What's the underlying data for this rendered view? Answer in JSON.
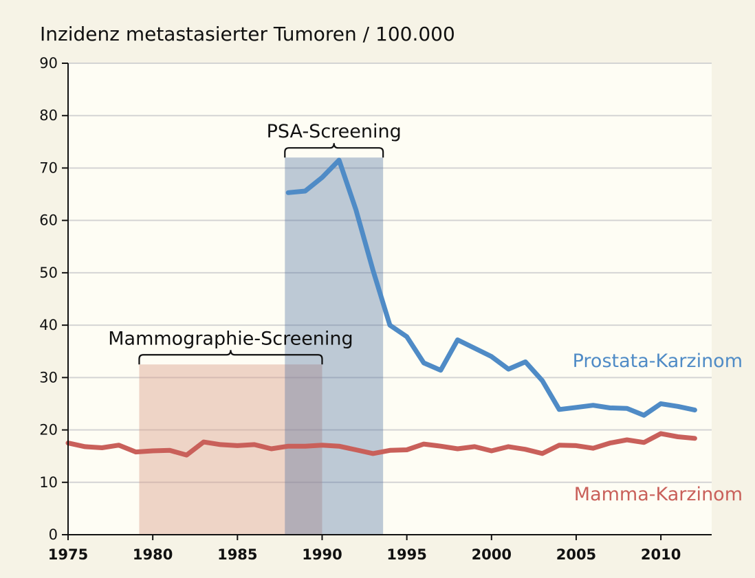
{
  "chart_data": {
    "type": "line",
    "title": "Inzidenz metastasierter Tumoren  / 100.000",
    "xlabel": "",
    "ylabel": "",
    "xlim": [
      1975,
      2013
    ],
    "ylim": [
      0,
      90
    ],
    "x_ticks": [
      1975,
      1980,
      1985,
      1990,
      1995,
      2000,
      2005,
      2010
    ],
    "y_ticks": [
      0,
      10,
      20,
      30,
      40,
      50,
      60,
      70,
      80,
      90
    ],
    "grid": true,
    "colors": {
      "background": "#f6f3e6",
      "plot_background": "#fefdf4",
      "gridline": "#d4d4d4",
      "axis": "#111111"
    },
    "bands": [
      {
        "name": "Mammographie-Screening",
        "x_start": 1979.2,
        "x_end": 1990,
        "y_top": 32.5,
        "color": "#d99a85",
        "opacity": 0.42
      },
      {
        "name": "PSA-Screening",
        "x_start": 1987.8,
        "x_end": 1993.6,
        "y_top": 72,
        "color": "#4b6b9e",
        "opacity": 0.36
      }
    ],
    "series": [
      {
        "name": "Prostata-Karzinom",
        "color": "#4f8bc6",
        "points": [
          [
            1988,
            65.3
          ],
          [
            1989,
            65.6
          ],
          [
            1990,
            68.2
          ],
          [
            1991,
            71.5
          ],
          [
            1992,
            62
          ],
          [
            1993,
            50.5
          ],
          [
            1994,
            40
          ],
          [
            1995,
            37.8
          ],
          [
            1996,
            32.8
          ],
          [
            1997,
            31.4
          ],
          [
            1998,
            37.2
          ],
          [
            1999,
            35.6
          ],
          [
            2000,
            34
          ],
          [
            2001,
            31.6
          ],
          [
            2002,
            33
          ],
          [
            2003,
            29.4
          ],
          [
            2004,
            23.9
          ],
          [
            2005,
            24.3
          ],
          [
            2006,
            24.7
          ],
          [
            2007,
            24.2
          ],
          [
            2008,
            24.1
          ],
          [
            2009,
            22.8
          ],
          [
            2010,
            25
          ],
          [
            2011,
            24.5
          ],
          [
            2012,
            23.8
          ]
        ]
      },
      {
        "name": "Mamma-Karzinom",
        "color": "#c9605a",
        "points": [
          [
            1975,
            17.5
          ],
          [
            1976,
            16.8
          ],
          [
            1977,
            16.6
          ],
          [
            1978,
            17.1
          ],
          [
            1979,
            15.8
          ],
          [
            1980,
            16
          ],
          [
            1981,
            16.1
          ],
          [
            1982,
            15.2
          ],
          [
            1983,
            17.7
          ],
          [
            1984,
            17.2
          ],
          [
            1985,
            17
          ],
          [
            1986,
            17.2
          ],
          [
            1987,
            16.4
          ],
          [
            1988,
            16.9
          ],
          [
            1989,
            16.9
          ],
          [
            1990,
            17.1
          ],
          [
            1991,
            16.9
          ],
          [
            1992,
            16.2
          ],
          [
            1993,
            15.5
          ],
          [
            1994,
            16.1
          ],
          [
            1995,
            16.2
          ],
          [
            1996,
            17.3
          ],
          [
            1997,
            16.9
          ],
          [
            1998,
            16.4
          ],
          [
            1999,
            16.8
          ],
          [
            2000,
            16
          ],
          [
            2001,
            16.8
          ],
          [
            2002,
            16.3
          ],
          [
            2003,
            15.5
          ],
          [
            2004,
            17.1
          ],
          [
            2005,
            17
          ],
          [
            2006,
            16.5
          ],
          [
            2007,
            17.5
          ],
          [
            2008,
            18.1
          ],
          [
            2009,
            17.6
          ],
          [
            2010,
            19.3
          ],
          [
            2011,
            18.7
          ],
          [
            2012,
            18.4
          ]
        ]
      }
    ]
  }
}
